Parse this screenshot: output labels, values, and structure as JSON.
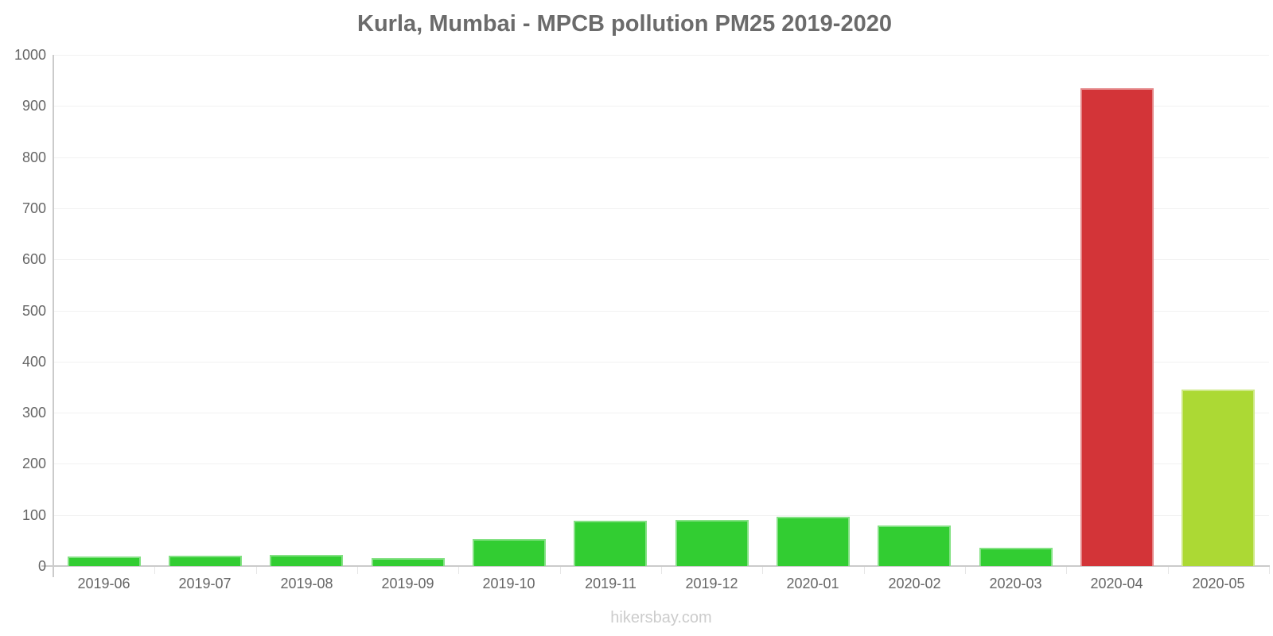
{
  "page": {
    "footer_text": "hikersbay.com"
  },
  "colors": {
    "title": "#6b6b6b",
    "axis_labels": "#666666",
    "grid": "#f2f2f2",
    "axis_line": "#cbcbcb",
    "boundary_tick": "#e6e6e6",
    "footer": "#cccccc",
    "bar_border": "rgba(255,255,255,0.4)",
    "green": "#32cd32",
    "red": "#d33438",
    "lime": "#acd934"
  },
  "chart_data": {
    "type": "bar",
    "title": "Kurla, Mumbai - MPCB pollution PM25 2019-2020",
    "categories": [
      "2019-06",
      "2019-07",
      "2019-08",
      "2019-09",
      "2019-10",
      "2019-11",
      "2019-12",
      "2020-01",
      "2020-02",
      "2020-03",
      "2020-04",
      "2020-05"
    ],
    "values": [
      18,
      20,
      22,
      15,
      53,
      88,
      90,
      97,
      79,
      35,
      935,
      346
    ],
    "bar_colors": [
      "#32cd32",
      "#32cd32",
      "#32cd32",
      "#32cd32",
      "#32cd32",
      "#32cd32",
      "#32cd32",
      "#32cd32",
      "#32cd32",
      "#32cd32",
      "#d33438",
      "#acd934"
    ],
    "xlabel": "",
    "ylabel": "",
    "ylim": [
      0,
      1000
    ],
    "yticks": [
      0,
      100,
      200,
      300,
      400,
      500,
      600,
      700,
      800,
      900,
      1000
    ],
    "grid": "horizontal",
    "legend": "none"
  }
}
